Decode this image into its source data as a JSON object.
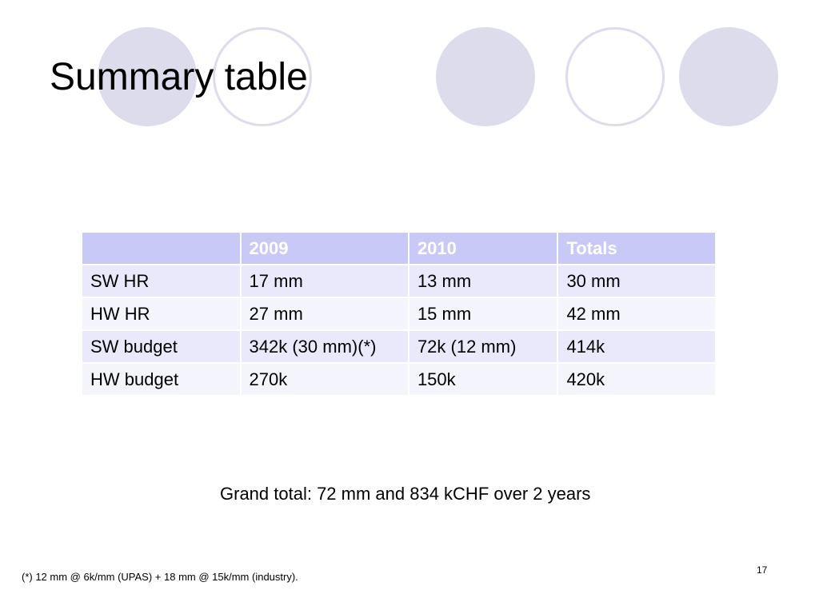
{
  "slide": {
    "title": "Summary table",
    "grand_total": "Grand total: 72 mm and 834 kCHF over 2 years",
    "footnote": "(*) 12 mm @ 6k/mm (UPAS) + 18 mm @ 15k/mm (industry).",
    "page_number": "17"
  },
  "table": {
    "headers": [
      "",
      "2009",
      "2010",
      "Totals"
    ],
    "rows": [
      [
        "SW HR",
        "17 mm",
        "13 mm",
        "30 mm"
      ],
      [
        "HW HR",
        "27 mm",
        "15 mm",
        "42 mm"
      ],
      [
        "SW budget",
        "342k (30 mm)(*)",
        "72k (12 mm)",
        "414k"
      ],
      [
        "HW budget",
        "270k",
        "150k",
        "420k"
      ]
    ]
  },
  "colors": {
    "decor_circle": "#dcdcec",
    "table_header_bg": "#c9c9f8",
    "table_row_odd": "#e9e9fb",
    "table_row_even": "#f4f4fd"
  }
}
